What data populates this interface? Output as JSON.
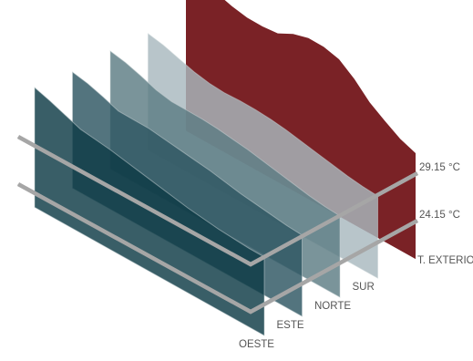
{
  "chart_data": {
    "type": "area",
    "layout": "3d-stacked-layers",
    "unit": "°C",
    "reference_lines": [
      {
        "label": "29.15 °C",
        "value": 29.15
      },
      {
        "label": "24.15 °C",
        "value": 24.15
      }
    ],
    "series": [
      {
        "name": "T. EXTERIOR",
        "color": "#7a2226",
        "values": [
          33.8,
          33.7,
          33.3,
          32.7,
          32.3,
          32.2,
          32.3,
          33.1,
          33.5,
          33.4,
          32.9,
          31.6,
          29.9,
          28.7,
          27.6,
          26.9
        ]
      },
      {
        "name": "SUR",
        "color": "#a8b8be",
        "values": [
          29.2,
          28.8,
          28.2,
          27.6,
          27.2,
          27.0,
          27.0,
          26.9,
          26.7,
          26.4,
          26.0,
          25.6,
          25.2,
          24.8,
          24.5,
          24.3
        ]
      },
      {
        "name": "NORTE",
        "color": "#5d7c84",
        "values": [
          29.4,
          29.0,
          28.4,
          27.7,
          27.3,
          27.2,
          27.1,
          26.9,
          26.6,
          26.3,
          25.9,
          25.5,
          25.1,
          24.7,
          24.4,
          24.2
        ]
      },
      {
        "name": "ESTE",
        "color": "#2d5661",
        "values": [
          29.2,
          28.8,
          28.2,
          27.5,
          27.4,
          27.3,
          27.0,
          26.7,
          26.4,
          26.1,
          25.7,
          25.3,
          25.0,
          24.7,
          24.4,
          24.2
        ]
      },
      {
        "name": "OESTE",
        "color": "#0e3a45",
        "values": [
          29.6,
          29.0,
          28.3,
          27.6,
          27.3,
          27.0,
          26.6,
          26.2,
          25.8,
          25.4,
          25.0,
          24.7,
          24.4,
          24.2,
          24.0,
          23.9
        ]
      }
    ]
  }
}
